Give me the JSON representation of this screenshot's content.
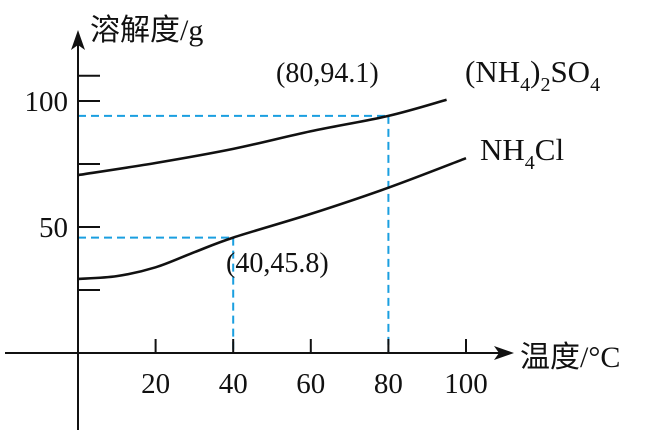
{
  "chart_data": {
    "type": "line",
    "ylabel": "溶解度/g",
    "xlabel": "温度/°C",
    "x_ticks": [
      20,
      40,
      60,
      80,
      100
    ],
    "y_ticks": [
      50,
      100
    ],
    "xlim": [
      0,
      100
    ],
    "ylim": [
      0,
      120
    ],
    "colors": {
      "axis": "#111111",
      "curve": "#111111",
      "guide": "#1a9fe0"
    },
    "series": [
      {
        "name": "(NH4)2SO4",
        "x": [
          0,
          20,
          40,
          60,
          80,
          95
        ],
        "y": [
          70.6,
          75.4,
          81.0,
          88.0,
          94.1,
          100.5
        ]
      },
      {
        "name": "NH4Cl",
        "x": [
          0,
          10,
          20,
          30,
          40,
          60,
          80,
          100
        ],
        "y": [
          29.4,
          30.5,
          34.0,
          40.0,
          45.8,
          55.2,
          65.6,
          77.3
        ]
      }
    ],
    "annotations": [
      {
        "label": "(80,94.1)",
        "x": 80,
        "y": 94.1
      },
      {
        "label": "(40,45.8)",
        "x": 40,
        "y": 45.8
      }
    ]
  }
}
